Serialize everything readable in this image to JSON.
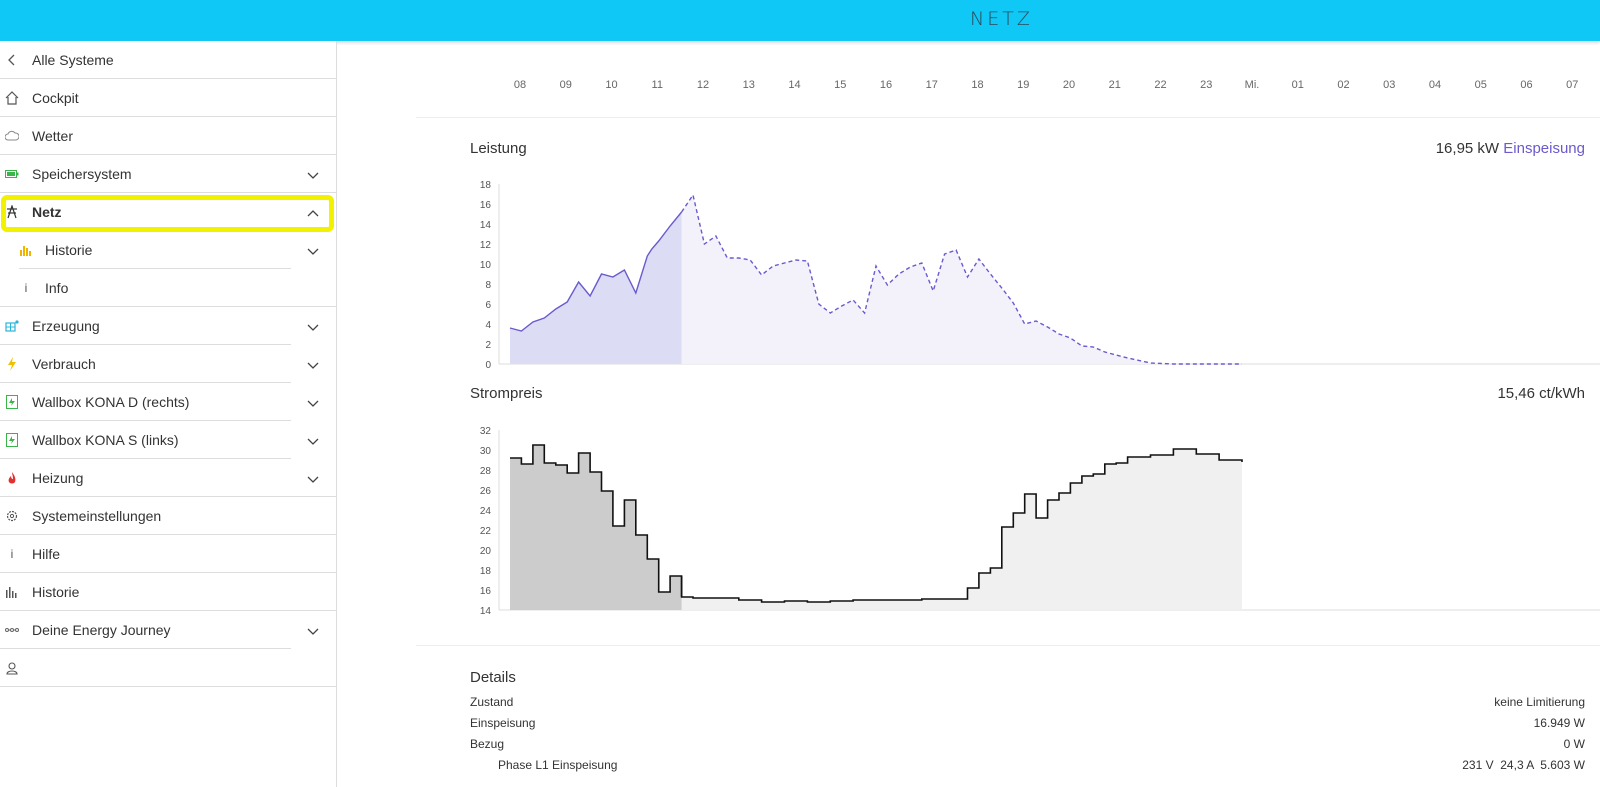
{
  "header": {
    "logo": "NETZ"
  },
  "sidebar": {
    "items": [
      {
        "label": "Alle Systeme",
        "icon": "chevron-left-icon"
      },
      {
        "label": "Cockpit",
        "icon": "home-icon"
      },
      {
        "label": "Wetter",
        "icon": "cloud-icon"
      },
      {
        "label": "Speichersystem",
        "icon": "battery-icon"
      },
      {
        "label": "Netz",
        "icon": "power-tower-icon"
      },
      {
        "label": "Historie",
        "icon": "bar-chart-icon"
      },
      {
        "label": "Info",
        "icon": "info-icon"
      },
      {
        "label": "Erzeugung",
        "icon": "solar-panel-icon"
      },
      {
        "label": "Verbrauch",
        "icon": "lightning-icon"
      },
      {
        "label": "Wallbox KONA D (rechts)",
        "icon": "wallbox-icon"
      },
      {
        "label": "Wallbox KONA S (links)",
        "icon": "wallbox-icon"
      },
      {
        "label": "Heizung",
        "icon": "flame-icon"
      },
      {
        "label": "Systemeinstellungen",
        "icon": "gear-icon"
      },
      {
        "label": "Hilfe",
        "icon": "info-icon"
      },
      {
        "label": "Historie",
        "icon": "bar-chart-icon"
      },
      {
        "label": "Deine Energy Journey",
        "icon": "journey-icon"
      },
      {
        "label": "",
        "icon": "user-icon"
      }
    ]
  },
  "timeline": {
    "hours": [
      "08",
      "09",
      "10",
      "11",
      "12",
      "13",
      "14",
      "15",
      "16",
      "17",
      "18",
      "19",
      "20",
      "21",
      "22",
      "23",
      "Mi.",
      "01",
      "02",
      "03",
      "04",
      "05",
      "06",
      "07"
    ]
  },
  "leistung": {
    "title": "Leistung",
    "value": "16,95 kW",
    "value_label": "Einspeisung"
  },
  "strompreis": {
    "title": "Strompreis",
    "value": "15,46 ct/kWh"
  },
  "details": {
    "title": "Details",
    "rows": [
      {
        "label": "Zustand",
        "value": "keine Limitierung"
      },
      {
        "label": "Einspeisung",
        "value": "16.949 W"
      },
      {
        "label": "Bezug",
        "value": "0 W"
      },
      {
        "label": "Phase L1 Einspeisung",
        "value": "231 V  24,3 A  5.603 W"
      }
    ]
  },
  "colors": {
    "topbar": "#10c8f5",
    "power_line": "#6a5acd",
    "power_fill": "#dcdcf5",
    "price_line": "#111111",
    "price_fill": "#cccccc",
    "highlight": "#f2f200"
  },
  "chart_data": [
    {
      "type": "area",
      "title": "Leistung",
      "ylim": [
        0,
        18
      ],
      "yticks": [
        "0",
        "2",
        "4",
        "6",
        "8",
        "10",
        "12",
        "14",
        "16",
        "18"
      ],
      "x": [
        8.0,
        8.25,
        8.5,
        8.75,
        9.0,
        9.25,
        9.5,
        9.75,
        10.0,
        10.25,
        10.5,
        10.75,
        11.0,
        11.1,
        11.25,
        11.5,
        11.75,
        12.0,
        12.25,
        12.5,
        12.75,
        13.0,
        13.25,
        13.5,
        13.75,
        14.0,
        14.25,
        14.5,
        14.75,
        15.0,
        15.25,
        15.5,
        15.75,
        16.0,
        16.25,
        16.5,
        16.75,
        17.0,
        17.25,
        17.5,
        17.75,
        18.0,
        18.25,
        18.5,
        18.75,
        19.0,
        19.25,
        19.5,
        19.75,
        20.0,
        20.25,
        20.5,
        20.75,
        21.0,
        21.5,
        22.0,
        22.5,
        23.0,
        23.5,
        24.0
      ],
      "values": [
        3.6,
        3.3,
        4.2,
        4.6,
        5.5,
        6.2,
        8.2,
        6.8,
        9.0,
        8.7,
        9.4,
        7.1,
        10.8,
        11.5,
        12.3,
        13.8,
        15.2,
        16.9,
        12.0,
        12.8,
        10.6,
        10.6,
        10.4,
        8.9,
        9.8,
        10.1,
        10.4,
        10.3,
        6.0,
        5.1,
        5.8,
        6.4,
        5.1,
        9.8,
        7.9,
        9.0,
        9.7,
        10.1,
        7.3,
        11.0,
        11.4,
        8.7,
        10.5,
        9.0,
        7.6,
        6.1,
        4.0,
        4.3,
        3.7,
        3.0,
        2.6,
        1.8,
        1.7,
        1.2,
        0.6,
        0.1,
        0.0,
        0.0,
        0.0,
        0.0
      ],
      "actual_until_x": 11.75,
      "series": [
        {
          "name": "Einspeisung"
        }
      ]
    },
    {
      "type": "area",
      "title": "Strompreis",
      "ylim": [
        14,
        32
      ],
      "yticks": [
        "14",
        "16",
        "18",
        "20",
        "22",
        "24",
        "26",
        "28",
        "30",
        "32"
      ],
      "step": true,
      "x": [
        8.0,
        8.25,
        8.5,
        8.75,
        9.0,
        9.25,
        9.5,
        9.75,
        10.0,
        10.25,
        10.5,
        10.75,
        11.0,
        11.25,
        11.5,
        11.75,
        12.0,
        12.5,
        13.0,
        13.5,
        14.0,
        14.5,
        15.0,
        15.5,
        16.0,
        16.5,
        17.0,
        17.5,
        18.0,
        18.25,
        18.5,
        18.75,
        19.0,
        19.25,
        19.5,
        19.75,
        20.0,
        20.25,
        20.5,
        20.75,
        21.0,
        21.25,
        21.5,
        22.0,
        22.5,
        23.0,
        23.5,
        24.0
      ],
      "values": [
        29.2,
        28.6,
        30.5,
        28.7,
        28.5,
        27.7,
        29.7,
        27.8,
        25.9,
        22.4,
        25.0,
        21.5,
        19.1,
        15.8,
        17.4,
        15.3,
        15.2,
        15.2,
        15.0,
        14.8,
        14.9,
        14.8,
        14.9,
        15.0,
        15.0,
        15.0,
        15.1,
        15.1,
        16.2,
        17.7,
        18.2,
        22.3,
        23.7,
        25.6,
        23.2,
        25.0,
        25.7,
        26.7,
        27.4,
        27.6,
        28.6,
        28.7,
        29.3,
        29.5,
        30.1,
        29.6,
        29.0,
        28.8
      ],
      "actual_until_x": 11.75,
      "series": [
        {
          "name": ""
        }
      ]
    }
  ]
}
